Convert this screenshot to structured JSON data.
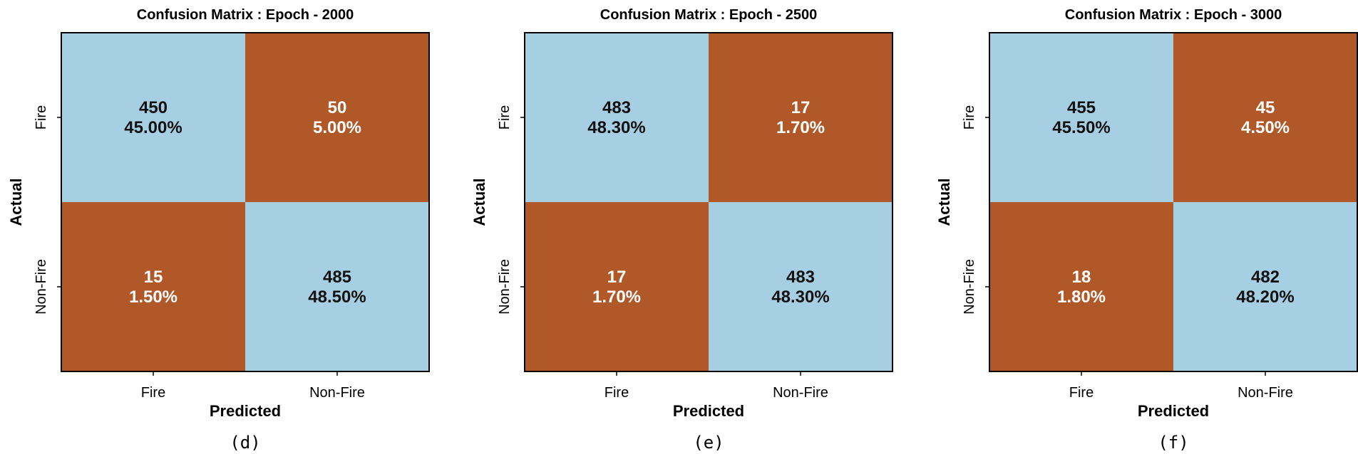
{
  "chart_data": [
    {
      "type": "heatmap",
      "title": "Confusion Matrix : Epoch - 2000",
      "xlabel": "Predicted",
      "ylabel": "Actual",
      "x_tick_labels": [
        "Fire",
        "Non-Fire"
      ],
      "y_tick_labels": [
        "Fire",
        "Non-Fire"
      ],
      "counts": [
        [
          450,
          50
        ],
        [
          15,
          485
        ]
      ],
      "percents": [
        [
          "45.00%",
          "5.00%"
        ],
        [
          "1.50%",
          "48.50%"
        ]
      ],
      "panel_label": "(d)"
    },
    {
      "type": "heatmap",
      "title": "Confusion Matrix : Epoch - 2500",
      "xlabel": "Predicted",
      "ylabel": "Actual",
      "x_tick_labels": [
        "Fire",
        "Non-Fire"
      ],
      "y_tick_labels": [
        "Fire",
        "Non-Fire"
      ],
      "counts": [
        [
          483,
          17
        ],
        [
          17,
          483
        ]
      ],
      "percents": [
        [
          "48.30%",
          "1.70%"
        ],
        [
          "1.70%",
          "48.30%"
        ]
      ],
      "panel_label": "(e)"
    },
    {
      "type": "heatmap",
      "title": "Confusion Matrix : Epoch - 3000",
      "xlabel": "Predicted",
      "ylabel": "Actual",
      "x_tick_labels": [
        "Fire",
        "Non-Fire"
      ],
      "y_tick_labels": [
        "Fire",
        "Non-Fire"
      ],
      "counts": [
        [
          455,
          45
        ],
        [
          18,
          482
        ]
      ],
      "percents": [
        [
          "45.50%",
          "4.50%"
        ],
        [
          "1.80%",
          "48.20%"
        ]
      ],
      "panel_label": "(f)"
    }
  ],
  "colors": {
    "correct_cell": "#a7cfe3",
    "error_cell": "#b05828",
    "correct_text": "#111111",
    "error_text": "#ffffff"
  }
}
